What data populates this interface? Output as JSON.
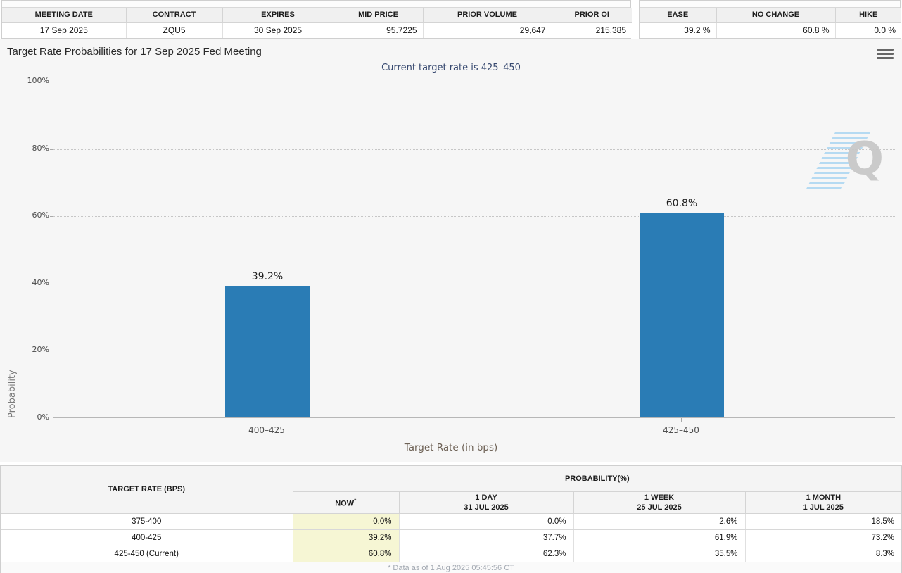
{
  "colors": {
    "bar_blue": "#2a7cb5",
    "now_highlight": "#f6f6d4",
    "subtitle_navy": "#36486f",
    "panel_bg": "#f6f6f6"
  },
  "icons": {
    "menu": "hamburger-icon",
    "watermark": "quikstrike-q-logo"
  },
  "contract_table": {
    "headers": [
      "MEETING DATE",
      "CONTRACT",
      "EXPIRES",
      "MID PRICE",
      "PRIOR VOLUME",
      "PRIOR OI"
    ],
    "values": [
      "17 Sep 2025",
      "ZQU5",
      "30 Sep 2025",
      "95.7225",
      "29,647",
      "215,385"
    ]
  },
  "action_table": {
    "headers": [
      "EASE",
      "NO CHANGE",
      "HIKE"
    ],
    "values": [
      "39.2 %",
      "60.8 %",
      "0.0 %"
    ]
  },
  "chart": {
    "title": "Target Rate Probabilities for 17 Sep 2025 Fed Meeting",
    "subtitle": "Current target rate is 425–450",
    "watermark_letter": "Q"
  },
  "chart_data": {
    "type": "bar",
    "categories": [
      "400–425",
      "425–450"
    ],
    "values": [
      39.2,
      60.8
    ],
    "value_labels": [
      "39.2%",
      "60.8%"
    ],
    "title": "Target Rate Probabilities for 17 Sep 2025 Fed Meeting",
    "subtitle": "Current target rate is 425–450",
    "xlabel": "Target Rate (in bps)",
    "ylabel": "Probability",
    "ylim": [
      0,
      100
    ],
    "yticks": [
      "100%",
      "80%",
      "60%",
      "40%",
      "20%",
      "0%"
    ],
    "grid": "horizontal-dotted",
    "legend": "none",
    "bar_color": "#2a7cb5"
  },
  "probability_table": {
    "col1_header": "TARGET RATE (BPS)",
    "group_header": "PROBABILITY(%)",
    "now_label": "NOW",
    "now_sup": "*",
    "sub_headers": [
      {
        "label": "1 DAY",
        "date": "31 JUL 2025"
      },
      {
        "label": "1 WEEK",
        "date": "25 JUL 2025"
      },
      {
        "label": "1 MONTH",
        "date": "1 JUL 2025"
      }
    ],
    "rows": [
      {
        "rate": "375-400",
        "values": [
          "0.0%",
          "0.0%",
          "2.6%",
          "18.5%"
        ]
      },
      {
        "rate": "400-425",
        "values": [
          "39.2%",
          "37.7%",
          "61.9%",
          "73.2%"
        ]
      },
      {
        "rate": "425-450 (Current)",
        "values": [
          "60.8%",
          "62.3%",
          "35.5%",
          "8.3%"
        ]
      }
    ],
    "footnote": "* Data as of 1 Aug 2025 05:45:56 CT"
  }
}
